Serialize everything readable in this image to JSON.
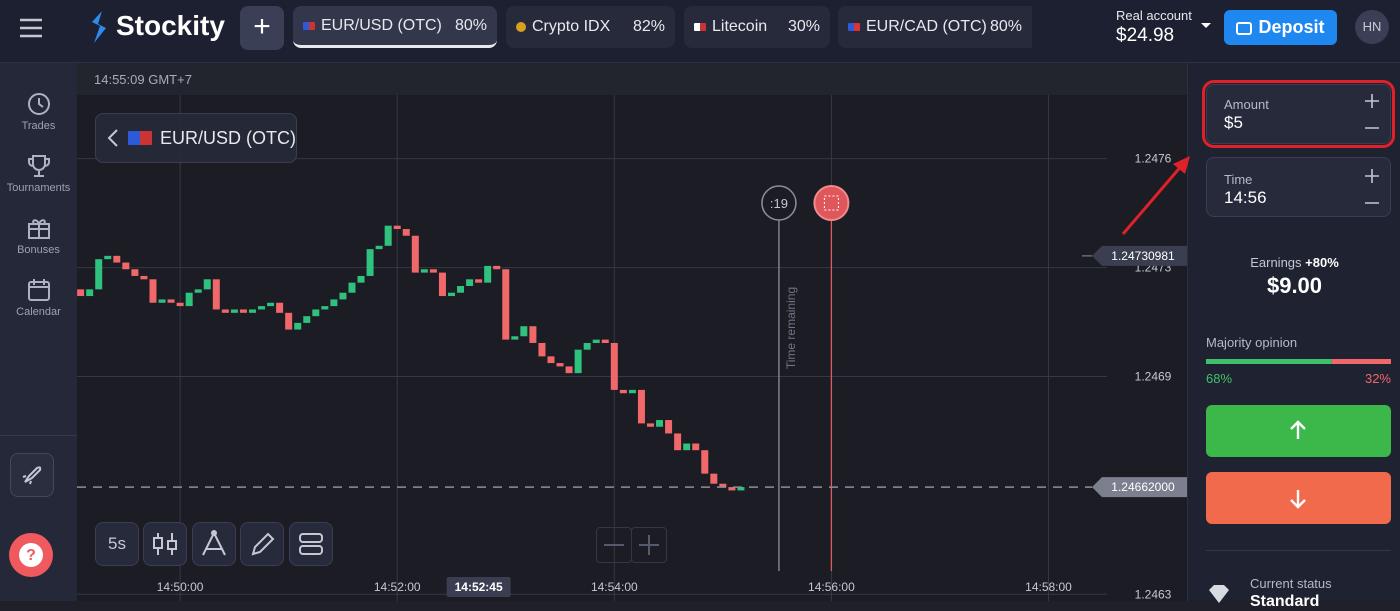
{
  "header": {
    "logo": "Stockity",
    "tabs": [
      {
        "name": "EUR/USD (OTC)",
        "payout": "80%"
      },
      {
        "name": "Crypto IDX",
        "payout": "82%"
      },
      {
        "name": "Litecoin",
        "payout": "30%"
      },
      {
        "name": "EUR/CAD (OTC)",
        "payout": "80%"
      }
    ],
    "account_label": "Real account",
    "balance": "$24.98",
    "deposit": "Deposit",
    "avatar": "HN"
  },
  "sidebar": [
    "Trades",
    "Tournaments",
    "Bonuses",
    "Calendar"
  ],
  "chart": {
    "clock": "14:55:09 GMT+7",
    "pair": "EUR/USD (OTC)",
    "timeframe": "5s",
    "countdown": ":19",
    "time_remaining": "Time remaining"
  },
  "chart_data": {
    "type": "candlestick",
    "up_color": "#2ec27e",
    "down_color": "#f0686a",
    "x": [
      53345,
      53350,
      53355,
      53360,
      53365,
      53370,
      53375,
      53380,
      53385,
      53390,
      53395,
      53400,
      53405,
      53410,
      53415,
      53420,
      53425,
      53430,
      53435,
      53440,
      53445,
      53450,
      53455,
      53460,
      53465,
      53470,
      53475,
      53480,
      53485,
      53490,
      53495,
      53500,
      53505,
      53510,
      53515,
      53520,
      53525,
      53530,
      53535,
      53540,
      53545,
      53550,
      53555,
      53560,
      53565,
      53570,
      53575,
      53580,
      53585,
      53590,
      53595,
      53600,
      53605,
      53610,
      53615,
      53620,
      53625,
      53630,
      53635,
      53640,
      53645,
      53650,
      53655,
      53660,
      53665,
      53670,
      53675,
      53680,
      53685,
      53690,
      53695,
      53700,
      53705,
      53710
    ],
    "open": [
      1.24721,
      1.24719,
      1.24721,
      1.2473,
      1.24731,
      1.24729,
      1.24727,
      1.24725,
      1.24724,
      1.24717,
      1.24718,
      1.24717,
      1.24716,
      1.2472,
      1.24721,
      1.24724,
      1.24715,
      1.24714,
      1.24715,
      1.24714,
      1.24715,
      1.24716,
      1.24717,
      1.24714,
      1.24709,
      1.24711,
      1.24713,
      1.24715,
      1.24716,
      1.24718,
      1.2472,
      1.24723,
      1.24725,
      1.24733,
      1.24734,
      1.2474,
      1.24739,
      1.24737,
      1.24726,
      1.24727,
      1.24726,
      1.24719,
      1.2472,
      1.24722,
      1.24724,
      1.24723,
      1.24728,
      1.24727,
      1.24706,
      1.24707,
      1.2471,
      1.24705,
      1.24701,
      1.24699,
      1.24698,
      1.24696,
      1.24703,
      1.24705,
      1.24706,
      1.24705,
      1.24691,
      1.2469,
      1.24691,
      1.24681,
      1.2468,
      1.24682,
      1.24678,
      1.24673,
      1.24675,
      1.24673,
      1.24666,
      1.24663,
      1.24662,
      1.24661
    ],
    "close": [
      1.24719,
      1.24721,
      1.2473,
      1.24731,
      1.24729,
      1.24727,
      1.24725,
      1.24724,
      1.24717,
      1.24718,
      1.24717,
      1.24716,
      1.2472,
      1.24721,
      1.24724,
      1.24715,
      1.24714,
      1.24715,
      1.24714,
      1.24715,
      1.24716,
      1.24717,
      1.24714,
      1.24709,
      1.24711,
      1.24713,
      1.24715,
      1.24716,
      1.24718,
      1.2472,
      1.24723,
      1.24725,
      1.24733,
      1.24734,
      1.2474,
      1.24739,
      1.24737,
      1.24726,
      1.24727,
      1.24726,
      1.24719,
      1.2472,
      1.24722,
      1.24724,
      1.24723,
      1.24728,
      1.24727,
      1.24706,
      1.24707,
      1.2471,
      1.24705,
      1.24701,
      1.24699,
      1.24698,
      1.24696,
      1.24703,
      1.24705,
      1.24706,
      1.24705,
      1.24691,
      1.2469,
      1.24691,
      1.24681,
      1.2468,
      1.24682,
      1.24678,
      1.24673,
      1.24675,
      1.24673,
      1.24666,
      1.24663,
      1.24662,
      1.24661,
      1.24662
    ],
    "xlim": [
      53343,
      53956
    ],
    "xticks": [
      {
        "value": 53400,
        "label": "14:50:00"
      },
      {
        "value": 53520,
        "label": "14:52:00"
      },
      {
        "value": 53640,
        "label": "14:54:00"
      },
      {
        "value": 53760,
        "label": "14:56:00"
      },
      {
        "value": 53880,
        "label": "14:58:00"
      }
    ],
    "ylim": [
      1.24628,
      1.24779
    ],
    "yticks": [
      {
        "value": 1.2476,
        "label": "1.2476"
      },
      {
        "value": 1.247275,
        "label": "1.2473"
      },
      {
        "value": 1.24695,
        "label": "1.2469"
      },
      {
        "value": 1.2463,
        "label": "1.2463"
      }
    ],
    "grid": true,
    "cursor": {
      "value": 53565,
      "label": "14:52:45"
    },
    "price_lines": [
      {
        "value": 1.24730981,
        "label": "1.24730981"
      },
      {
        "value": 1.24662,
        "label": "1.24662000"
      }
    ],
    "vlines": [
      {
        "value": 53731,
        "color": "#8c8f9c"
      },
      {
        "value": 53760,
        "color": "#e05a5e"
      }
    ]
  },
  "panel": {
    "amount_label": "Amount",
    "amount": "$5",
    "time_label": "Time",
    "time": "14:56",
    "earnings_label": "Earnings",
    "earnings_pct": "+80%",
    "earnings": "$9.00",
    "majority_label": "Majority opinion",
    "up": {
      "value": 68,
      "label": "68%"
    },
    "down": {
      "value": 32,
      "label": "32%"
    },
    "status_label": "Current status",
    "status": "Standard"
  }
}
